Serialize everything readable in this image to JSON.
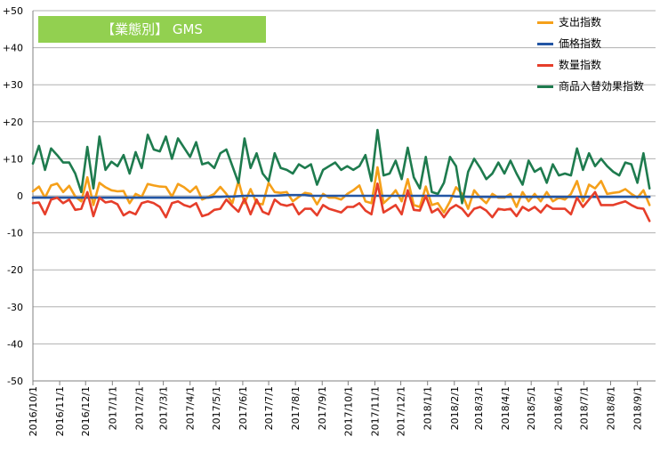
{
  "chart_data": {
    "type": "line",
    "title": "【業態別】 GMS",
    "xlabel": "",
    "ylabel": "",
    "ylim": [
      -50,
      50
    ],
    "yticks": [
      50,
      40,
      30,
      20,
      10,
      0,
      -10,
      -20,
      -30,
      -40,
      -50
    ],
    "ytick_labels": [
      "+50",
      "+40",
      "+30",
      "+20",
      "+10",
      "0",
      "-10",
      "-20",
      "-30",
      "-40",
      "-50"
    ],
    "grid": true,
    "legend_position": "top-right",
    "x_start": "2016/10/1",
    "x_interval": "week",
    "x_tick_labels": [
      "2016/10/1",
      "2016/11/1",
      "2016/12/1",
      "2017/1/1",
      "2017/2/1",
      "2017/3/1",
      "2017/4/1",
      "2017/5/1",
      "2017/6/1",
      "2017/7/1",
      "2017/8/1",
      "2017/9/1",
      "2017/10/1",
      "2017/11/1",
      "2017/12/1",
      "2018/1/1",
      "2018/2/1",
      "2018/3/1",
      "2018/4/1",
      "2018/5/1",
      "2018/6/1",
      "2018/7/1",
      "2018/8/1",
      "2018/9/1"
    ],
    "series": [
      {
        "name": "支出指数",
        "color": "#f5a01a",
        "values": [
          1.2,
          2.5,
          -0.5,
          2.8,
          3.3,
          1.0,
          2.7,
          -0.2,
          -1.5,
          5.0,
          -2.5,
          3.5,
          2.3,
          1.5,
          1.2,
          1.3,
          -2.0,
          0.5,
          -0.3,
          3.2,
          2.8,
          2.5,
          2.4,
          -0.2,
          3.2,
          2.3,
          1.0,
          2.5,
          -1.0,
          -0.3,
          0.5,
          2.4,
          0.5,
          -2.0,
          4.0,
          -2.0,
          1.8,
          -2.0,
          -2.3,
          3.5,
          1.0,
          0.8,
          1.0,
          -1.5,
          -0.3,
          0.8,
          0.5,
          -2.3,
          0.5,
          -0.5,
          -0.5,
          -1.0,
          0.5,
          1.5,
          2.8,
          -1.5,
          -2.0,
          7.7,
          -2.0,
          -0.5,
          1.5,
          -1.5,
          4.5,
          -2.5,
          -3.0,
          2.5,
          -2.5,
          -2.0,
          -4.5,
          -1.5,
          2.3,
          0.5,
          -3.5,
          1.5,
          -0.5,
          -2.0,
          0.5,
          -0.5,
          -0.5,
          0.5,
          -3.0,
          1.0,
          -1.5,
          0.5,
          -1.5,
          1.0,
          -1.5,
          -0.5,
          -1.0,
          0.5,
          4.0,
          -1.5,
          3.0,
          2.0,
          4.0,
          0.5,
          0.8,
          1.0,
          1.8,
          0.5,
          -0.5,
          1.5,
          -2.5
        ]
      },
      {
        "name": "価格指数",
        "color": "#2255a4",
        "values": [
          -0.5,
          -0.5,
          -0.5,
          -0.5,
          -0.5,
          -0.5,
          -0.5,
          -0.5,
          -0.5,
          -0.5,
          -0.5,
          -0.5,
          -0.5,
          -0.5,
          -0.5,
          -0.5,
          -0.5,
          -0.5,
          -0.5,
          -0.5,
          -0.5,
          -0.5,
          -0.5,
          -0.5,
          -0.5,
          -0.5,
          -0.5,
          -0.5,
          -0.5,
          -0.5,
          -0.3,
          -0.3,
          -0.2,
          -0.2,
          -0.1,
          0.0,
          0.0,
          0.0,
          0.0,
          0.0,
          0.0,
          0.1,
          0.2,
          0.2,
          0.2,
          0.2,
          0.0,
          0.0,
          0.0,
          0.0,
          0.0,
          0.0,
          0.0,
          0.0,
          0.0,
          0.0,
          0.0,
          0.0,
          0.0,
          0.0,
          0.0,
          0.0,
          0.0,
          0.0,
          0.0,
          0.0,
          0.0,
          0.0,
          0.0,
          0.0,
          -0.2,
          -0.2,
          -0.3,
          -0.3,
          -0.3,
          -0.3,
          -0.3,
          -0.3,
          -0.3,
          -0.3,
          -0.3,
          -0.3,
          -0.3,
          -0.3,
          -0.3,
          -0.3,
          -0.3,
          -0.3,
          -0.3,
          -0.3,
          -0.3,
          -0.3,
          -0.3,
          -0.3,
          -0.3,
          -0.3,
          -0.3,
          -0.3,
          -0.3,
          -0.3,
          -0.3,
          -0.3,
          -0.3
        ]
      },
      {
        "name": "数量指数",
        "color": "#e63e2a",
        "values": [
          -2.0,
          -1.8,
          -5.0,
          -1.0,
          -0.5,
          -2.0,
          -1.0,
          -3.8,
          -3.5,
          1.0,
          -5.5,
          -0.5,
          -1.8,
          -1.5,
          -2.3,
          -5.3,
          -4.3,
          -5.0,
          -2.0,
          -1.5,
          -2.0,
          -3.0,
          -5.8,
          -2.0,
          -1.5,
          -2.5,
          -3.0,
          -2.0,
          -5.5,
          -5.0,
          -3.8,
          -3.5,
          -1.0,
          -2.8,
          -4.3,
          -0.8,
          -5.0,
          -1.0,
          -4.3,
          -5.0,
          -1.0,
          -2.3,
          -2.7,
          -2.2,
          -5.0,
          -3.5,
          -3.5,
          -5.3,
          -2.5,
          -3.5,
          -4.0,
          -4.5,
          -3.0,
          -3.0,
          -2.0,
          -4.0,
          -5.0,
          3.3,
          -4.5,
          -3.5,
          -2.5,
          -5.0,
          1.5,
          -3.8,
          -4.0,
          0.0,
          -4.5,
          -3.5,
          -5.8,
          -3.5,
          -2.5,
          -3.5,
          -5.5,
          -3.5,
          -3.0,
          -4.0,
          -5.8,
          -3.5,
          -3.8,
          -3.5,
          -5.5,
          -3.0,
          -4.0,
          -3.0,
          -4.5,
          -2.5,
          -3.5,
          -3.5,
          -3.5,
          -5.0,
          -0.5,
          -3.0,
          -1.0,
          1.0,
          -2.5,
          -2.5,
          -2.5,
          -2.0,
          -1.5,
          -2.5,
          -3.3,
          -3.5,
          -6.8
        ]
      },
      {
        "name": "商品入替効果指数",
        "color": "#1e7b4e",
        "values": [
          8.7,
          13.5,
          7.0,
          12.8,
          11.0,
          9.0,
          9.0,
          6.0,
          1.0,
          13.2,
          2.0,
          16.0,
          7.0,
          9.2,
          8.0,
          11.0,
          6.0,
          11.8,
          7.5,
          16.5,
          12.5,
          12.0,
          16.0,
          10.0,
          15.5,
          13.0,
          10.5,
          14.5,
          8.5,
          9.0,
          7.5,
          11.5,
          12.5,
          8.0,
          3.5,
          15.5,
          7.5,
          11.5,
          6.0,
          4.0,
          11.5,
          7.5,
          7.0,
          6.0,
          8.5,
          7.5,
          8.5,
          3.0,
          7.0,
          8.0,
          9.0,
          7.0,
          8.0,
          7.0,
          8.0,
          11.0,
          4.0,
          17.8,
          5.5,
          6.0,
          9.5,
          4.5,
          13.0,
          5.0,
          2.0,
          10.5,
          1.0,
          0.5,
          3.5,
          10.5,
          8.0,
          -2.0,
          6.5,
          10.0,
          7.5,
          4.5,
          6.0,
          9.0,
          6.0,
          9.5,
          6.0,
          3.0,
          9.5,
          6.5,
          7.5,
          3.5,
          8.5,
          5.5,
          6.0,
          5.5,
          12.8,
          7.0,
          11.5,
          8.0,
          10.0,
          8.0,
          6.5,
          5.5,
          9.0,
          8.5,
          3.5,
          11.5,
          2.0
        ]
      }
    ]
  }
}
